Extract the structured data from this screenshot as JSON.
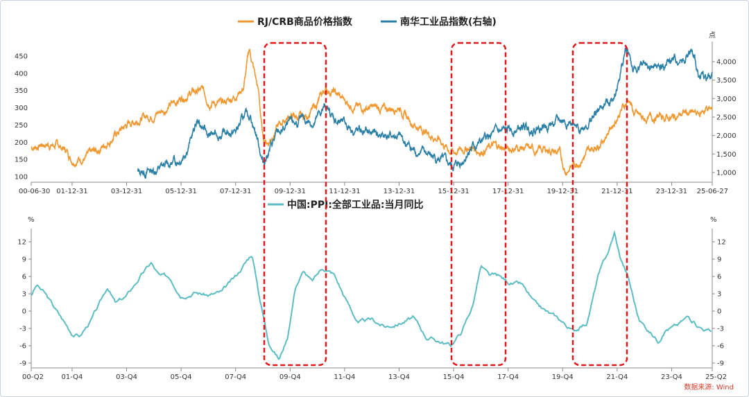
{
  "colors": {
    "rj_crb": "#f0982f",
    "nanhua": "#2a7fa6",
    "ppi": "#5bbdc3",
    "highlight": "#e0181b",
    "axis": "#888888"
  },
  "source_text": "数据来源: Wind",
  "chart_data": [
    {
      "type": "line",
      "legend_position": "top-center",
      "grid": false,
      "left_axis": {
        "ylim": [
          100,
          450
        ],
        "ticks": [
          100,
          150,
          200,
          250,
          300,
          350,
          400,
          450
        ],
        "tick_labels": [
          "100",
          "150",
          "200",
          "250",
          "300",
          "350",
          "400",
          "450"
        ]
      },
      "right_axis": {
        "unit": "点",
        "ylim": [
          800,
          4400
        ],
        "ticks": [
          1000,
          1500,
          2000,
          2500,
          3000,
          3500,
          4000
        ],
        "tick_labels": [
          "1,000",
          "1,500",
          "2,000",
          "2,500",
          "3,000",
          "3,500",
          "4,000"
        ]
      },
      "x_range": [
        2000.5,
        2025.49
      ],
      "x_tick_labels": [
        {
          "x": 2000.5,
          "label": "00-06-30"
        },
        {
          "x": 2002.0,
          "label": "01-12-31"
        },
        {
          "x": 2004.0,
          "label": "03-12-31"
        },
        {
          "x": 2006.0,
          "label": "05-12-31"
        },
        {
          "x": 2008.0,
          "label": "07-12-31"
        },
        {
          "x": 2010.0,
          "label": "09-12-31"
        },
        {
          "x": 2012.0,
          "label": "11-12-31"
        },
        {
          "x": 2014.0,
          "label": "13-12-31"
        },
        {
          "x": 2016.0,
          "label": "15-12-31"
        },
        {
          "x": 2018.0,
          "label": "17-12-31"
        },
        {
          "x": 2020.0,
          "label": "19-12-31"
        },
        {
          "x": 2022.0,
          "label": "21-12-31"
        },
        {
          "x": 2024.0,
          "label": "23-12-31"
        },
        {
          "x": 2025.49,
          "label": "25-06-27"
        }
      ],
      "series": [
        {
          "name": "RJ/CRB商品价格指数",
          "axis": "left",
          "x": [
            2000.5,
            2001.0,
            2001.5,
            2001.8,
            2002.0,
            2002.5,
            2003.0,
            2003.5,
            2004.0,
            2004.5,
            2005.0,
            2005.5,
            2006.0,
            2006.4,
            2006.8,
            2007.0,
            2007.5,
            2007.9,
            2008.3,
            2008.5,
            2008.7,
            2008.85,
            2009.0,
            2009.2,
            2009.5,
            2009.8,
            2010.0,
            2010.5,
            2010.9,
            2011.3,
            2011.6,
            2012.0,
            2012.5,
            2013.0,
            2013.5,
            2014.0,
            2014.3,
            2014.6,
            2015.0,
            2015.5,
            2015.8,
            2016.0,
            2016.5,
            2017.0,
            2017.5,
            2018.0,
            2018.5,
            2019.0,
            2019.5,
            2019.9,
            2020.1,
            2020.3,
            2020.6,
            2021.0,
            2021.5,
            2021.9,
            2022.2,
            2022.45,
            2022.6,
            2023.0,
            2023.5,
            2024.0,
            2024.5,
            2025.0,
            2025.3,
            2025.49
          ],
          "values": [
            185,
            195,
            190,
            175,
            150,
            155,
            180,
            215,
            250,
            270,
            280,
            300,
            330,
            345,
            350,
            320,
            310,
            330,
            360,
            470,
            400,
            340,
            210,
            200,
            240,
            265,
            275,
            270,
            300,
            355,
            345,
            320,
            300,
            300,
            295,
            305,
            270,
            250,
            230,
            205,
            180,
            170,
            185,
            175,
            190,
            180,
            185,
            175,
            180,
            165,
            115,
            130,
            145,
            175,
            210,
            260,
            300,
            325,
            285,
            265,
            275,
            270,
            285,
            280,
            300,
            290
          ]
        },
        {
          "name": "南华工业品指数(右轴)",
          "axis": "right",
          "x": [
            2004.4,
            2005.0,
            2005.5,
            2006.0,
            2006.3,
            2006.6,
            2007.0,
            2007.5,
            2008.0,
            2008.3,
            2008.55,
            2008.85,
            2009.0,
            2009.5,
            2010.0,
            2010.5,
            2010.9,
            2011.3,
            2011.6,
            2012.0,
            2012.5,
            2013.0,
            2013.5,
            2014.0,
            2014.5,
            2015.0,
            2015.5,
            2015.8,
            2016.0,
            2016.3,
            2016.6,
            2017.0,
            2017.5,
            2018.0,
            2018.5,
            2019.0,
            2019.5,
            2020.0,
            2020.3,
            2020.5,
            2021.0,
            2021.5,
            2021.8,
            2022.0,
            2022.15,
            2022.3,
            2022.45,
            2022.6,
            2023.0,
            2023.5,
            2024.0,
            2024.5,
            2024.7,
            2025.0,
            2025.3,
            2025.49
          ],
          "values": [
            1000,
            1060,
            1200,
            1400,
            1800,
            2400,
            2000,
            2050,
            2100,
            2500,
            2550,
            1800,
            1250,
            2000,
            2300,
            2400,
            2350,
            2800,
            2450,
            2300,
            2100,
            2050,
            2000,
            1950,
            1600,
            1500,
            1350,
            1200,
            1150,
            1300,
            1650,
            1800,
            2050,
            2100,
            2200,
            2200,
            2300,
            2400,
            2350,
            2100,
            2400,
            2800,
            3000,
            3300,
            3800,
            4300,
            4200,
            3700,
            3900,
            3800,
            4000,
            4100,
            4250,
            3650,
            3550,
            3600
          ]
        }
      ]
    },
    {
      "type": "line",
      "grid": false,
      "left_axis": {
        "unit": "%",
        "ylim": [
          -9,
          12
        ],
        "ticks": [
          -9,
          -6,
          -3,
          0,
          3,
          6,
          9,
          12
        ],
        "tick_labels": [
          "-9",
          "-6",
          "-3",
          "0",
          "3",
          "6",
          "9",
          "12"
        ]
      },
      "right_axis": {
        "unit": "%",
        "ylim": [
          -9,
          12
        ],
        "ticks": [
          -9,
          -6,
          -3,
          0,
          3,
          6,
          9,
          12
        ],
        "tick_labels": [
          "-9",
          "-6",
          "-3",
          "0",
          "3",
          "6",
          "9",
          "12"
        ]
      },
      "x_range": [
        2000.5,
        2025.49
      ],
      "x_tick_labels": [
        {
          "x": 2000.5,
          "label": "00-Q2"
        },
        {
          "x": 2002.0,
          "label": "01-Q4"
        },
        {
          "x": 2004.0,
          "label": "03-Q4"
        },
        {
          "x": 2006.0,
          "label": "05-Q4"
        },
        {
          "x": 2008.0,
          "label": "07-Q4"
        },
        {
          "x": 2010.0,
          "label": "09-Q4"
        },
        {
          "x": 2012.0,
          "label": "11-Q4"
        },
        {
          "x": 2014.0,
          "label": "13-Q4"
        },
        {
          "x": 2016.0,
          "label": "15-Q4"
        },
        {
          "x": 2018.0,
          "label": "17-Q4"
        },
        {
          "x": 2020.0,
          "label": "19-Q4"
        },
        {
          "x": 2022.0,
          "label": "21-Q4"
        },
        {
          "x": 2024.0,
          "label": "23-Q4"
        },
        {
          "x": 2025.49,
          "label": "25-Q2"
        }
      ],
      "series": [
        {
          "name": "中国:PPI:全部工业品:当月同比",
          "x": [
            2000.5,
            2000.7,
            2001.0,
            2001.5,
            2002.0,
            2002.3,
            2002.7,
            2003.0,
            2003.3,
            2003.6,
            2004.0,
            2004.5,
            2004.9,
            2005.2,
            2005.6,
            2006.0,
            2006.5,
            2007.0,
            2007.5,
            2008.0,
            2008.3,
            2008.6,
            2008.9,
            2009.2,
            2009.6,
            2009.9,
            2010.2,
            2010.5,
            2010.8,
            2011.2,
            2011.6,
            2012.0,
            2012.5,
            2013.0,
            2013.5,
            2014.0,
            2014.5,
            2015.0,
            2015.5,
            2015.9,
            2016.3,
            2016.7,
            2017.0,
            2017.3,
            2017.6,
            2018.0,
            2018.5,
            2019.0,
            2019.5,
            2019.9,
            2020.4,
            2020.9,
            2021.3,
            2021.7,
            2021.9,
            2022.1,
            2022.4,
            2022.8,
            2023.2,
            2023.5,
            2023.8,
            2024.2,
            2024.6,
            2025.0,
            2025.49
          ],
          "values": [
            2.8,
            4.5,
            3.0,
            -0.5,
            -3.8,
            -4.2,
            -1.5,
            1.0,
            4.2,
            1.3,
            2.5,
            6.0,
            8.3,
            6.0,
            5.7,
            3.0,
            3.5,
            2.8,
            3.2,
            5.8,
            8.0,
            10.0,
            2.0,
            -5.0,
            -8.2,
            -4.5,
            4.5,
            7.0,
            5.0,
            7.5,
            6.5,
            2.5,
            -2.0,
            -1.6,
            -2.7,
            -2.0,
            -1.2,
            -4.5,
            -5.2,
            -5.9,
            -3.5,
            1.0,
            7.8,
            6.0,
            6.0,
            5.0,
            4.5,
            1.0,
            -0.5,
            -1.5,
            -3.5,
            -2.0,
            6.0,
            10.5,
            13.5,
            9.5,
            6.0,
            -1.5,
            -3.5,
            -5.0,
            -3.0,
            -2.5,
            -1.0,
            -2.5,
            -3.6
          ]
        }
      ]
    }
  ]
}
